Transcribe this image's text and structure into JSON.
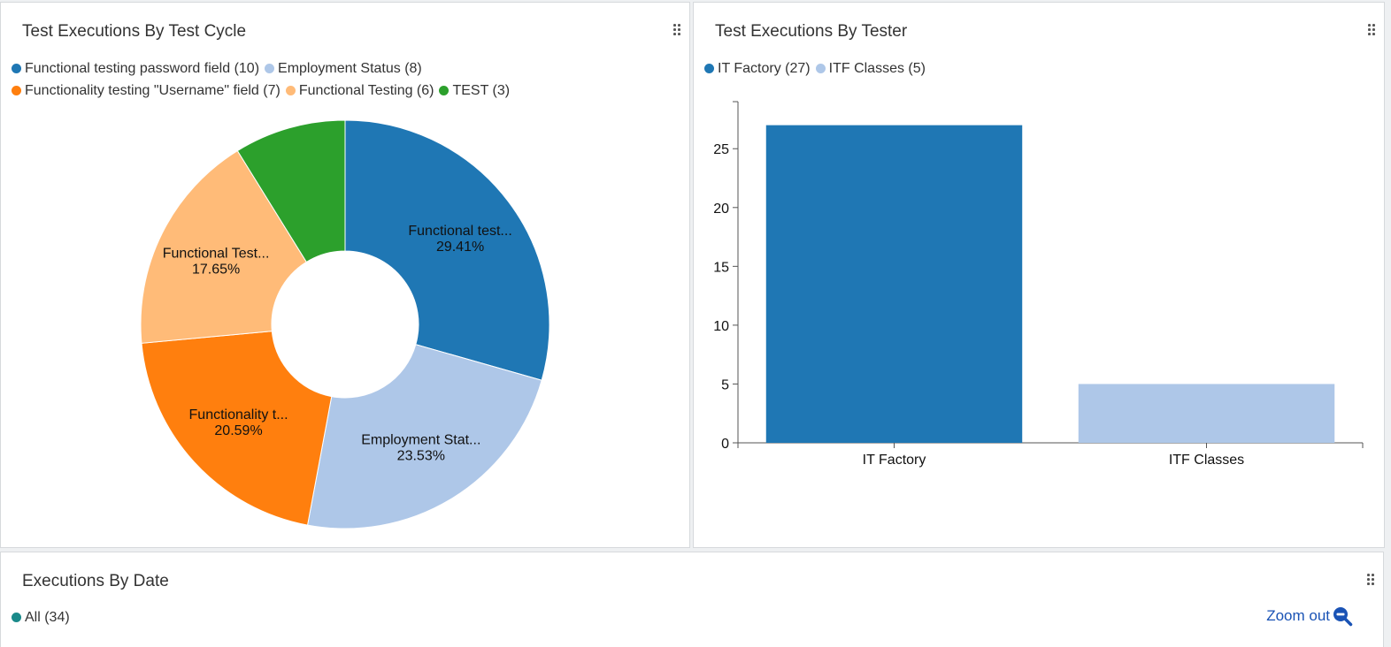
{
  "panels": {
    "cycle": {
      "title": "Test Executions By Test Cycle",
      "legend": [
        {
          "label": "Functional testing password field (10)",
          "color": "#1f77b4"
        },
        {
          "label": "Employment Status (8)",
          "color": "#aec7e8"
        },
        {
          "label": "Functionality testing \"Username\" field (7)",
          "color": "#ff7f0e"
        },
        {
          "label": "Functional Testing (6)",
          "color": "#ffbb78"
        },
        {
          "label": "TEST (3)",
          "color": "#2ca02c"
        }
      ]
    },
    "tester": {
      "title": "Test Executions By Tester",
      "legend": [
        {
          "label": "IT Factory (27)",
          "color": "#1f77b4"
        },
        {
          "label": "ITF Classes (5)",
          "color": "#aec7e8"
        }
      ]
    },
    "date": {
      "title": "Executions By Date",
      "legend": [
        {
          "label": "All (34)",
          "color": "#1a8a8a"
        }
      ],
      "zoom_label": "Zoom out"
    }
  },
  "chart_data": [
    {
      "type": "pie",
      "title": "Test Executions By Test Cycle",
      "donut": true,
      "categories": [
        "Functional testing password field",
        "Employment Status",
        "Functionality testing \"Username\" field",
        "Functional Testing",
        "TEST"
      ],
      "values": [
        10,
        8,
        7,
        6,
        3
      ],
      "colors": [
        "#1f77b4",
        "#aec7e8",
        "#ff7f0e",
        "#ffbb78",
        "#2ca02c"
      ],
      "slice_labels": [
        {
          "name": "Functional test...",
          "pct": "29.41%"
        },
        {
          "name": "Employment Stat...",
          "pct": "23.53%"
        },
        {
          "name": "Functionality t...",
          "pct": "20.59%"
        },
        {
          "name": "Functional Test...",
          "pct": "17.65%"
        },
        null
      ],
      "legend_position": "top-left"
    },
    {
      "type": "bar",
      "title": "Test Executions By Tester",
      "categories": [
        "IT Factory",
        "ITF Classes"
      ],
      "values": [
        27,
        5
      ],
      "colors": [
        "#1f77b4",
        "#aec7e8"
      ],
      "ylim": [
        0,
        29
      ],
      "yticks": [
        0,
        5,
        10,
        15,
        20,
        25
      ],
      "grid": false,
      "legend_position": "top-left"
    }
  ]
}
